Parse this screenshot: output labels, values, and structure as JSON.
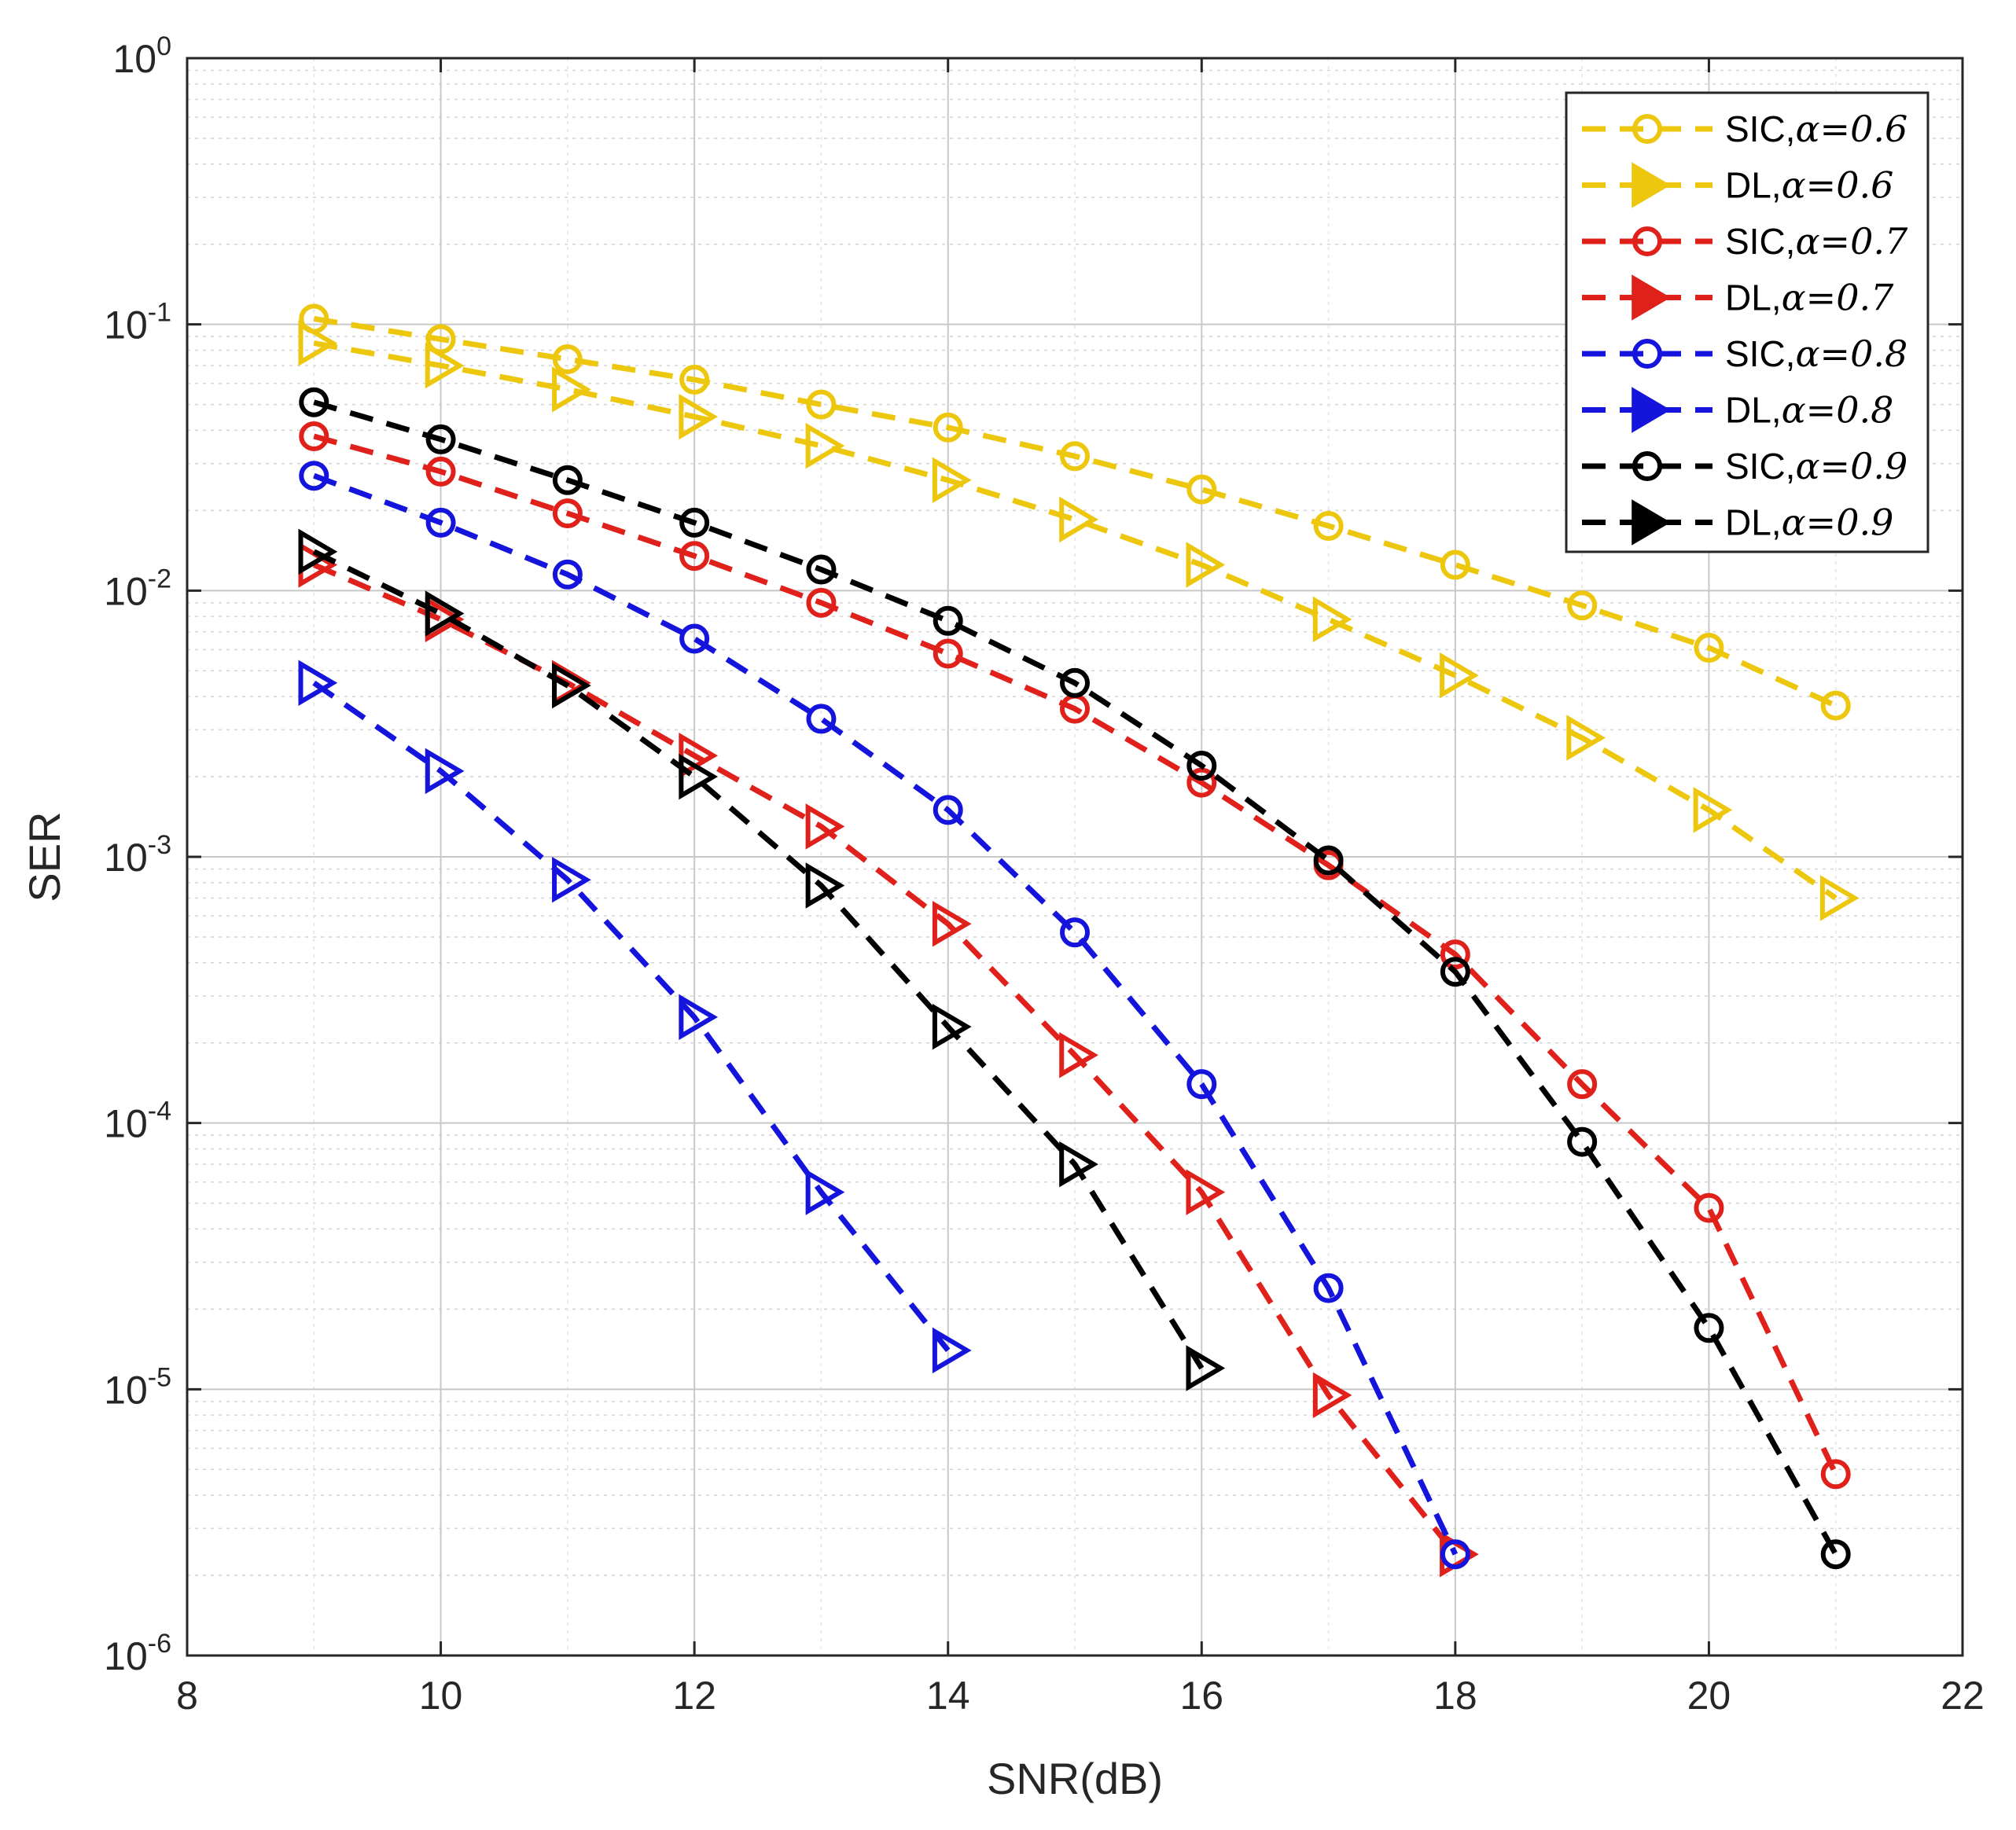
{
  "chart_data": {
    "type": "line",
    "title": "",
    "xlabel": "SNR(dB)",
    "ylabel": "SER",
    "xlim": [
      8,
      22
    ],
    "ylim": [
      1e-06,
      1
    ],
    "yscale": "log",
    "grid": true,
    "x_ticks": [
      "8",
      "10",
      "12",
      "14",
      "16",
      "18",
      "20",
      "22"
    ],
    "y_ticks": [
      {
        "base": "10",
        "exp": "0"
      },
      {
        "base": "10",
        "exp": "-1"
      },
      {
        "base": "10",
        "exp": "-2"
      },
      {
        "base": "10",
        "exp": "-3"
      },
      {
        "base": "10",
        "exp": "-4"
      },
      {
        "base": "10",
        "exp": "-5"
      },
      {
        "base": "10",
        "exp": "-6"
      }
    ],
    "legend_position": "top-right",
    "series": [
      {
        "name": "SIC,α=0.6",
        "label_prefix": "SIC,",
        "label_param": "α=0.6",
        "color": "#EDC70E",
        "marker": "circle",
        "x": [
          9,
          10,
          11,
          12,
          13,
          14,
          15,
          16,
          17,
          18,
          19,
          20,
          21
        ],
        "y": [
          0.105,
          0.088,
          0.074,
          0.062,
          0.05,
          0.041,
          0.032,
          0.024,
          0.0175,
          0.0125,
          0.0088,
          0.0061,
          0.0037
        ]
      },
      {
        "name": "DL,α=0.6",
        "label_prefix": "DL,",
        "label_param": "α=0.6",
        "color": "#EDC70E",
        "marker": "triangle",
        "x": [
          9,
          10,
          11,
          12,
          13,
          14,
          15,
          16,
          17,
          18,
          19,
          20,
          21
        ],
        "y": [
          0.085,
          0.07,
          0.057,
          0.045,
          0.035,
          0.026,
          0.0185,
          0.0125,
          0.0078,
          0.0048,
          0.0028,
          0.0015,
          0.0007
        ]
      },
      {
        "name": "SIC,α=0.7",
        "label_prefix": "SIC,",
        "label_param": "α=0.7",
        "color": "#E0201B",
        "marker": "circle",
        "x": [
          9,
          10,
          11,
          12,
          13,
          14,
          15,
          16,
          17,
          18,
          19,
          20,
          21
        ],
        "y": [
          0.038,
          0.028,
          0.0195,
          0.0135,
          0.009,
          0.0058,
          0.0036,
          0.0019,
          0.00093,
          0.00043,
          0.00014,
          4.8e-05,
          4.8e-06
        ]
      },
      {
        "name": "DL,α=0.7",
        "label_prefix": "DL,",
        "label_param": "α=0.7",
        "color": "#E0201B",
        "marker": "triangle",
        "x": [
          9,
          10,
          11,
          12,
          13,
          14,
          15,
          16,
          17,
          18
        ],
        "y": [
          0.0125,
          0.0078,
          0.0045,
          0.0024,
          0.0013,
          0.00056,
          0.00018,
          5.5e-05,
          9.5e-06,
          2.4e-06
        ]
      },
      {
        "name": "SIC,α=0.8",
        "label_prefix": "SIC,",
        "label_param": "α=0.8",
        "color": "#1414DC",
        "marker": "circle",
        "x": [
          9,
          10,
          11,
          12,
          13,
          14,
          15,
          16,
          17,
          18
        ],
        "y": [
          0.027,
          0.018,
          0.0115,
          0.0066,
          0.0033,
          0.0015,
          0.00052,
          0.00014,
          2.4e-05,
          2.4e-06
        ]
      },
      {
        "name": "DL,α=0.8",
        "label_prefix": "DL,",
        "label_param": "α=0.8",
        "color": "#1414DC",
        "marker": "triangle",
        "x": [
          9,
          10,
          11,
          12,
          13,
          14
        ],
        "y": [
          0.0045,
          0.0021,
          0.00082,
          0.00025,
          5.5e-05,
          1.4e-05
        ]
      },
      {
        "name": "SIC,α=0.9",
        "label_prefix": "SIC,",
        "label_param": "α=0.9",
        "color": "#000000",
        "marker": "circle",
        "x": [
          9,
          10,
          11,
          12,
          13,
          14,
          15,
          16,
          17,
          18,
          19,
          20,
          21
        ],
        "y": [
          0.051,
          0.037,
          0.026,
          0.018,
          0.012,
          0.0077,
          0.0045,
          0.0022,
          0.00097,
          0.00037,
          8.5e-05,
          1.7e-05,
          2.4e-06
        ]
      },
      {
        "name": "DL,α=0.9",
        "label_prefix": "DL,",
        "label_param": "α=0.9",
        "color": "#000000",
        "marker": "triangle",
        "x": [
          9,
          10,
          11,
          12,
          13,
          14,
          15,
          16
        ],
        "y": [
          0.014,
          0.0082,
          0.0044,
          0.002,
          0.00078,
          0.00023,
          7e-05,
          1.2e-05
        ]
      }
    ]
  }
}
